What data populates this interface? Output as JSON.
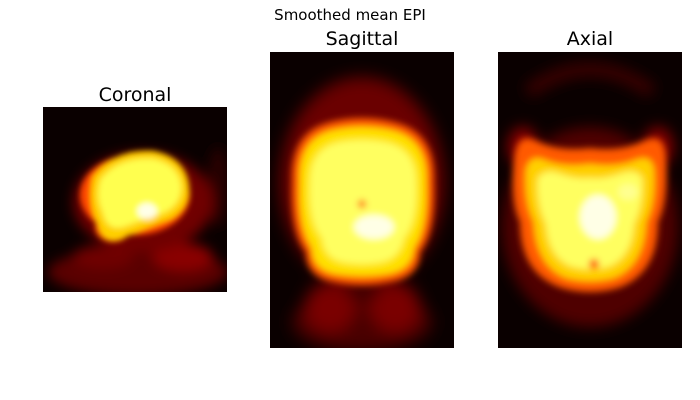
{
  "figure": {
    "title": "Smoothed mean EPI",
    "colormap": "hot",
    "panels": [
      {
        "title": "Coronal",
        "view": "coronal"
      },
      {
        "title": "Sagittal",
        "view": "sagittal"
      },
      {
        "title": "Axial",
        "view": "axial"
      }
    ]
  },
  "colors": {
    "background": "#ffffff",
    "hot_black": "#000000",
    "hot_dark_red": "#3a0000",
    "hot_red": "#c80000",
    "hot_orange": "#ff6a00",
    "hot_yellow": "#ffff40",
    "hot_white": "#ffffe6"
  }
}
